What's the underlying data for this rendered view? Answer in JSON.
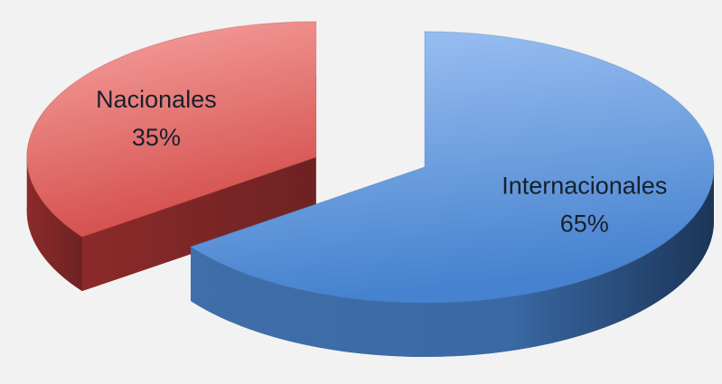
{
  "chart_data": {
    "type": "pie3d",
    "categories": [
      "Nacionales",
      "Internacionales"
    ],
    "values": [
      35,
      65
    ],
    "value_labels": [
      "35%",
      "65%"
    ],
    "colors": [
      "#c0504d",
      "#4f81bd"
    ]
  }
}
